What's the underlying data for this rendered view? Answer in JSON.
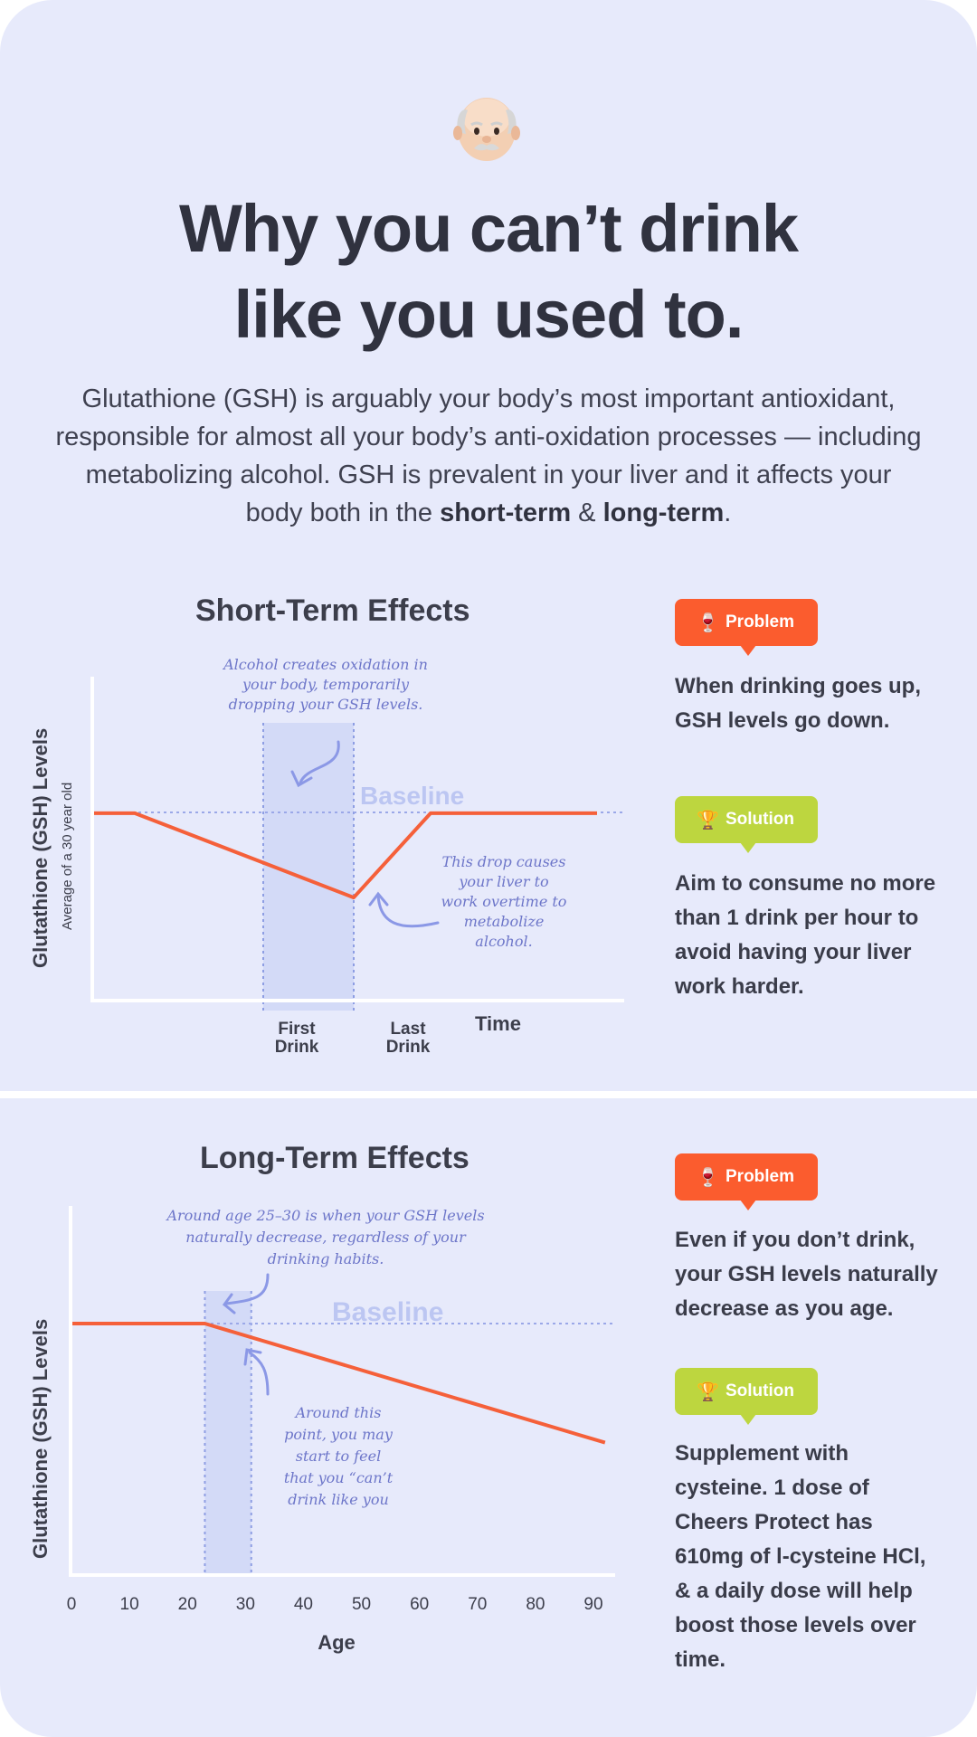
{
  "header": {
    "emoji": "old-man-emoji",
    "title_line1": "Why you can’t drink",
    "title_line2": "like you used to.",
    "intro_text": "Glutathione (GSH) is arguably your body’s most important antioxidant, responsible for almost all your body’s anti-oxidation processes — including metabolizing alcohol. GSH is prevalent in your liver and it affects your body both in the ",
    "intro_bold1": "short-term",
    "intro_join": " & ",
    "intro_bold2": "long-term",
    "intro_end": "."
  },
  "short_term": {
    "title": "Short-Term Effects",
    "problem": {
      "label": "Problem",
      "icon": "wine-glass-icon",
      "text": "When drinking goes up, GSH levels go down."
    },
    "solution": {
      "label": "Solution",
      "icon": "trophy-icon",
      "text": "Aim to consume no more than 1 drink per hour to avoid having your liver work harder."
    }
  },
  "long_term": {
    "title": "Long-Term Effects",
    "problem": {
      "label": "Problem",
      "icon": "wine-glass-icon",
      "text": "Even if you don’t drink, your GSH levels naturally decrease as you age."
    },
    "solution": {
      "label": "Solution",
      "icon": "trophy-icon",
      "text": "Supplement with cysteine. 1 dose of Cheers Protect has 610mg of l-cysteine HCl, & a daily dose will help boost those levels over time."
    }
  },
  "colors": {
    "background": "#e7eafb",
    "line": "#f5603a",
    "baseline": "#9ba8e8",
    "highlight": "#d3daf7",
    "annotation": "#6d76c9",
    "problem": "#fb5c2e",
    "solution": "#bdd63f"
  },
  "chart_data": [
    {
      "type": "line",
      "ylabel": "Glutathione (GSH) Levels",
      "ylabel_sub": "Average of a 30 year old",
      "xlabel": "Time",
      "x_ticks": [
        "First\nDrink",
        "Last\nDrink"
      ],
      "baseline_label": "Baseline",
      "shaded_region": "First Drink to Last Drink",
      "x": [
        0,
        1,
        2,
        3,
        4
      ],
      "y": [
        1.0,
        1.0,
        0.55,
        1.0,
        1.0
      ],
      "x_range": [
        0,
        4
      ],
      "y_range": [
        0,
        1.4
      ],
      "annotations": [
        "Alcohol creates oxidation in your body, temporarily dropping your GSH levels.",
        "This drop causes your liver to work overtime to metabolize alcohol."
      ]
    },
    {
      "type": "line",
      "ylabel": "Glutathione (GSH) Levels",
      "xlabel": "Age",
      "x_ticks": [
        0,
        10,
        20,
        30,
        40,
        50,
        60,
        70,
        80,
        90
      ],
      "x_range": [
        0,
        92
      ],
      "y_range": [
        0,
        100
      ],
      "baseline_label": "Baseline",
      "baseline": 100,
      "shaded_region": [
        23,
        31
      ],
      "x": [
        0,
        23,
        92
      ],
      "y": [
        100,
        100,
        53
      ],
      "annotations": [
        "Around age 25–30 is when your GSH levels naturally decrease, regardless of your drinking habits.",
        "Around this point, you may start to feel that you “can’t drink like you used to.”"
      ]
    }
  ]
}
